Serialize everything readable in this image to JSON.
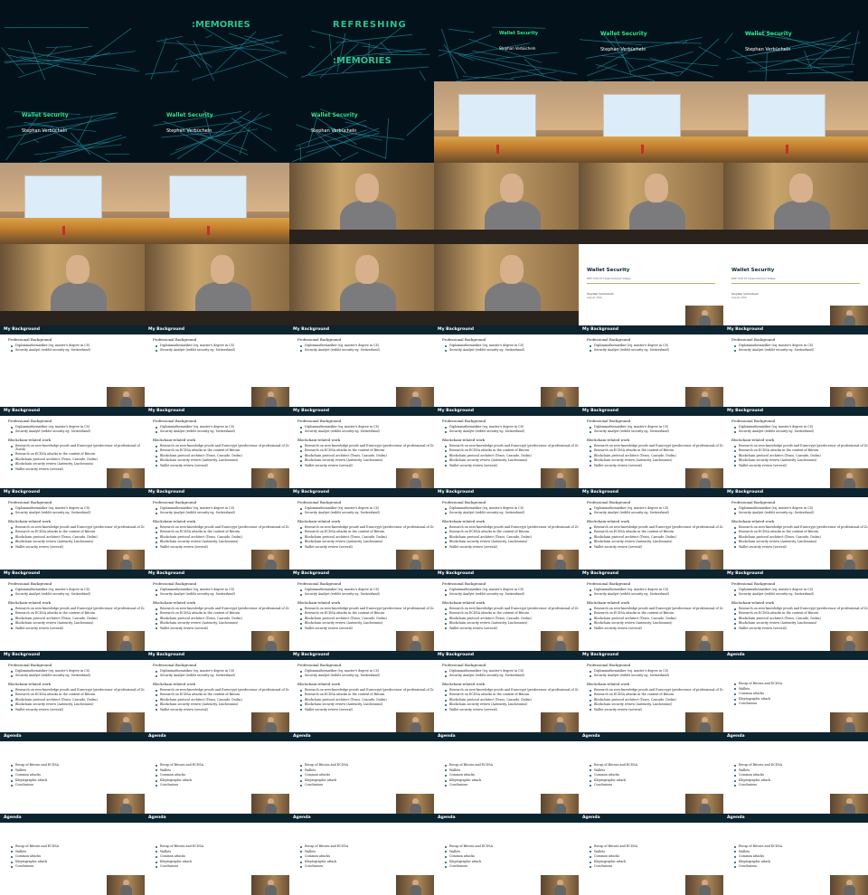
{
  "intro": {
    "title": "Wallet Security",
    "speaker": "Stephan Verbücheln",
    "logo_top": "REFRESHING",
    "logo_bottom": "MEMORIES",
    "logo_bottom_prefix": ":"
  },
  "title_slide": {
    "title": "Wallet Security",
    "subtitle": "DEF CON 32 Cryptocurrency Village",
    "author": "Stephan Verbücheln",
    "date": "August 2024"
  },
  "background_slide": {
    "header": "My Background",
    "professional_heading": "Professional Background",
    "professional_items": [
      "Diplommathematiker (eq. master's degree in CS)",
      "Security Analyst (reddit security eg. Switzerland)"
    ],
    "blockchain_heading": "Blockchain-related work",
    "blockchain_items": [
      "Research on zero-knowledge proofs and Eurocrypt (predecessor of professional of Zcash)",
      "Research on ECDSA attacks in the context of Bitcoin",
      "Blockchain protocol architect (Tezos, Cascade, Dsdsu)",
      "Blockchain security review (Auteurity, Lincheonnis)",
      "Wallet security review (several)"
    ]
  },
  "agenda_slide": {
    "header": "Agenda",
    "items": [
      "Recap of Bitcoin and ECDSA",
      "Wallets",
      "Common attacks",
      "Kleptographic attack",
      "Conclusions"
    ]
  },
  "colors": {
    "intro_bg": "#03121a",
    "accent_green": "#34e08a",
    "slide_bar": "#0c2430"
  },
  "tiles": [
    "intro-dark",
    "intro-logo-a",
    "intro-logo-b",
    "intro-logo-c",
    "title-card",
    "title-card",
    "intro-title",
    "intro-title",
    "intro-title",
    "hall",
    "hall",
    "hall",
    "hall",
    "hall",
    "speaker",
    "speaker",
    "speaker",
    "speaker",
    "speaker",
    "speaker",
    "speaker",
    "speaker",
    "title-slide",
    "title-slide",
    "bg1",
    "bg1",
    "bg1",
    "bg1",
    "bg1",
    "bg1",
    "bg2",
    "bg2",
    "bg2",
    "bg2",
    "bg2",
    "bg2",
    "bg2",
    "bg2",
    "bg2",
    "bg2",
    "bg2",
    "bg2",
    "bg2",
    "bg2",
    "bg2",
    "bg2",
    "bg2",
    "bg2",
    "bg2",
    "bg2",
    "bg2",
    "bg2",
    "bg2",
    "agenda",
    "agenda",
    "agenda",
    "agenda",
    "agenda",
    "agenda",
    "agenda",
    "agenda",
    "agenda",
    "agenda",
    "agenda",
    "agenda",
    "agenda"
  ]
}
